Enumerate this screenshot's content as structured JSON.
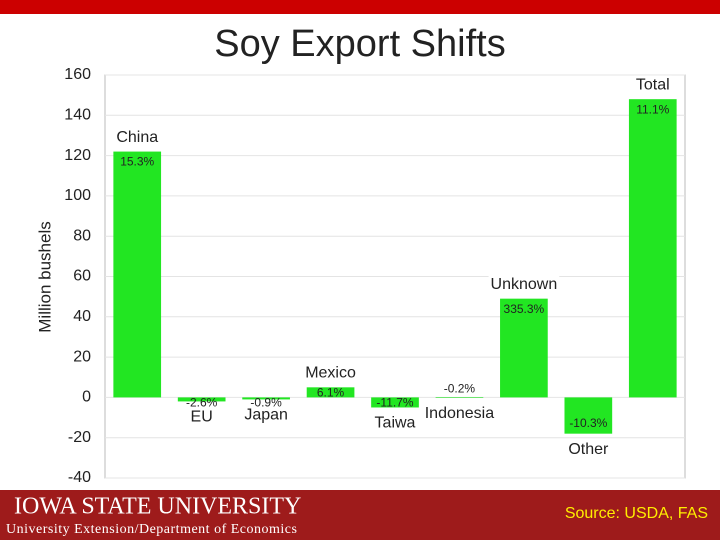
{
  "chart_data": {
    "type": "bar",
    "title": "Soy Export Shifts",
    "y_label": "Million bushels",
    "categories": [
      "China",
      "EU",
      "Japan",
      "Mexico",
      "Taiwa",
      "Indonesia",
      "Unknown",
      "Other",
      "Total"
    ],
    "values": [
      122,
      -2,
      -1,
      5,
      -5,
      -0.3,
      49,
      -18,
      148
    ],
    "change_labels": [
      "15.3%",
      "-2.6%",
      "-0.9%",
      "6.1%",
      "-11.7%",
      "-0.2%",
      "335.3%",
      "-10.3%",
      "11.1%"
    ],
    "color": "#22e622",
    "ylim": [
      -40,
      160
    ],
    "yticks": [
      -40,
      -20,
      0,
      20,
      40,
      60,
      80,
      100,
      120,
      140,
      160
    ],
    "grid": true
  },
  "footer": {
    "university": "IOWA STATE UNIVERSITY",
    "department": "University Extension/Department of Economics",
    "source": "Source: USDA, FAS"
  }
}
